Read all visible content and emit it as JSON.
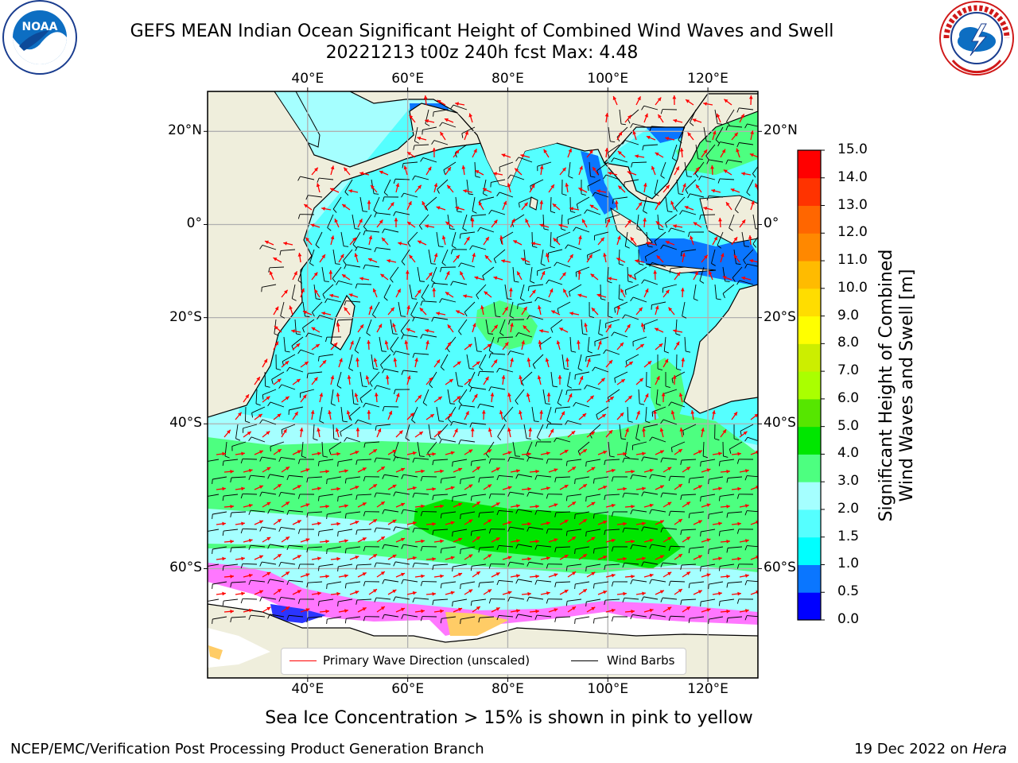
{
  "header": {
    "title_line1": "GEFS MEAN Indian Ocean Significant Height of Combined Wind Waves and Swell",
    "title_line2": "20221213 t00z 240h fcst   Max: 4.48",
    "noaa_logo_text": "NOAA",
    "noaa_ring_text": "NATIONAL OCEANIC AND ATMOSPHERIC ADMINISTRATION · U.S. DEPARTMENT OF COMMERCE",
    "nws_ring_text": "NATIONAL WEATHER SERVICE"
  },
  "map": {
    "lon_labels": [
      "40°E",
      "60°E",
      "80°E",
      "100°E",
      "120°E"
    ],
    "lon_values": [
      40,
      60,
      80,
      100,
      120
    ],
    "lat_labels_left": [
      "20°N",
      "0°",
      "20°S",
      "40°S",
      "60°S"
    ],
    "lat_labels_right": [
      "20°N",
      "0°",
      "20°S",
      "40°S",
      "60°S"
    ],
    "lat_values": [
      20,
      0,
      -20,
      -40,
      -60
    ],
    "extent": {
      "lon_min": 20,
      "lon_max": 130,
      "lat_min": -70,
      "lat_max": 28
    },
    "land_color": "#efeedc",
    "grid": true
  },
  "legend": {
    "wave_direction": "Primary Wave Direction (unscaled)",
    "wind_barbs": "Wind Barbs",
    "wave_color": "#ff0000",
    "barb_color": "#000000"
  },
  "colorbar": {
    "label_line1": "Significant Height of Combined",
    "label_line2": "Wind Waves and Swell [m]",
    "ticks": [
      "15.0",
      "14.0",
      "13.0",
      "12.0",
      "11.0",
      "10.0",
      "9.0",
      "8.0",
      "7.0",
      "6.0",
      "5.0",
      "4.0",
      "3.0",
      "2.0",
      "1.5",
      "1.0",
      "0.5",
      "0.0"
    ],
    "colors_bottom_to_top": [
      "#0000ff",
      "#0a76ff",
      "#00ffff",
      "#55ffff",
      "#a5ffff",
      "#4dff80",
      "#00e600",
      "#56e600",
      "#aaff00",
      "#ccee00",
      "#ffff00",
      "#ffdd00",
      "#ffbb00",
      "#ff8800",
      "#ff6600",
      "#ff3300",
      "#ff0000"
    ]
  },
  "footer": {
    "sea_ice_note": "Sea Ice Concentration > 15% is shown in pink to yellow",
    "branch": "NCEP/EMC/Verification Post Processing Product Generation Branch",
    "date_prefix": "19 Dec 2022 on ",
    "date_host": "Hera"
  },
  "chart_data": {
    "type": "heatmap",
    "variable": "Significant Height of Combined Wind Waves and Swell [m]",
    "run": "20221213 t00z",
    "forecast_hour": "240h",
    "max_value": 4.48,
    "regions": [
      {
        "band": "Southern Ocean 40°S–55°S",
        "height_range_m": [
          3.0,
          4.0
        ]
      },
      {
        "band": "Core 50°S–56°S, 70°E–110°E",
        "height_range_m": [
          4.0,
          4.48
        ]
      },
      {
        "band": "Tropical Indian Ocean",
        "height_range_m": [
          1.5,
          2.0
        ]
      },
      {
        "band": "Central patch ~15°S, 78°E",
        "height_range_m": [
          3.0,
          4.0
        ]
      },
      {
        "band": "Off W Australia ~25°S–35°S",
        "height_range_m": [
          3.0,
          4.0
        ]
      },
      {
        "band": "Indonesian seas / Bay of Bengal coast",
        "height_range_m": [
          0.5,
          1.0
        ]
      }
    ],
    "sea_ice": "Concentration > 15% shown in pink to yellow south of ~62°S"
  }
}
